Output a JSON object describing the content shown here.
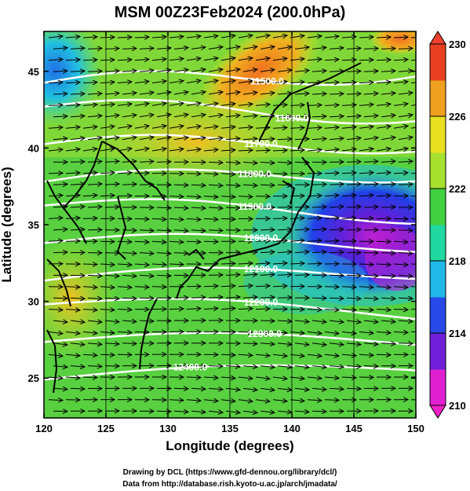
{
  "title": "MSM 00Z23Feb2024 (200.0hPa)",
  "xaxis": {
    "label": "Longitude (degrees)",
    "range": [
      120,
      150
    ],
    "ticks": [
      "120",
      "125",
      "130",
      "135",
      "140",
      "145",
      "150"
    ]
  },
  "yaxis": {
    "label": "Latitude  (degrees)",
    "range": [
      22.4,
      47.6
    ],
    "ticks": [
      "25",
      "30",
      "35",
      "40",
      "45"
    ]
  },
  "colorbar": {
    "range": [
      210,
      230
    ],
    "ticks": [
      "210",
      "214",
      "218",
      "222",
      "226",
      "230"
    ],
    "colors": [
      "#e020d0",
      "#7020d8",
      "#2848e8",
      "#20b8e8",
      "#20d8a0",
      "#40d040",
      "#a8e030",
      "#e8e020",
      "#f0a020",
      "#e84020"
    ]
  },
  "contours": [
    {
      "label": "12400.0",
      "lon": 131.8
    },
    {
      "label": "12300.0",
      "lon": 137.8
    },
    {
      "label": "12200.0",
      "lon": 137.5
    },
    {
      "label": "12100.0",
      "lon": 137.5
    },
    {
      "label": "12000.0",
      "lon": 137.5
    },
    {
      "label": "11900.0",
      "lon": 137.0
    },
    {
      "label": "11800.0",
      "lon": 137.0
    },
    {
      "label": "11700.0",
      "lon": 137.5
    },
    {
      "label": "11600.0",
      "lon": 140.0
    },
    {
      "label": "11500.0",
      "lon": 138.0
    }
  ],
  "credits": {
    "line1": "Drawing by DCL (https://www.gfd-dennou.org/library/dcl/)",
    "line2": "Data from http://database.rish.kyoto-u.ac.jp/arch/jmadata/"
  }
}
